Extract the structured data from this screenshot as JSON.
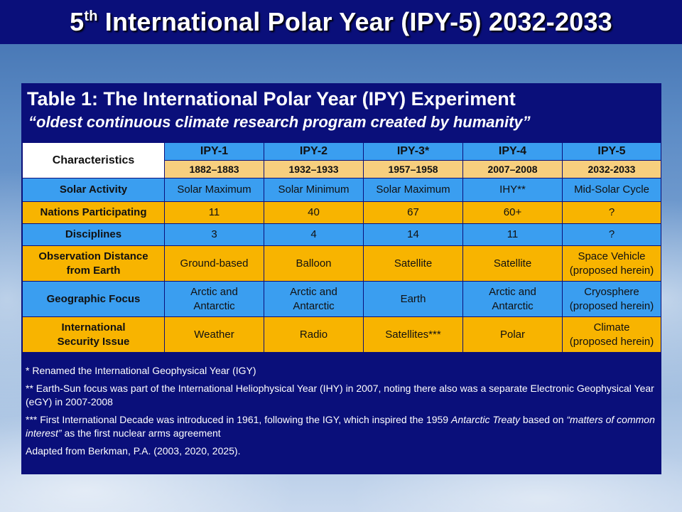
{
  "slide": {
    "title_prefix": "5",
    "title_sup": "th",
    "title_rest": " International Polar Year (IPY-5) 2032-2033"
  },
  "panel": {
    "title": "Table 1: The International Polar Year (IPY) Experiment",
    "subtitle": "“oldest continuous climate research program created by humanity”"
  },
  "table": {
    "corner_label": "Characteristics",
    "columns": [
      {
        "name": "IPY-1",
        "years": "1882–1883"
      },
      {
        "name": "IPY-2",
        "years": "1932–1933"
      },
      {
        "name": "IPY-3*",
        "years": "1957–1958"
      },
      {
        "name": "IPY-4",
        "years": "2007–2008"
      },
      {
        "name": "IPY-5",
        "years": "2032-2033"
      }
    ],
    "rows": [
      {
        "label": "Solar Activity",
        "cells": [
          "Solar Maximum",
          "Solar Minimum",
          "Solar Maximum",
          "IHY**",
          "Mid-Solar Cycle"
        ]
      },
      {
        "label": "Nations Participating",
        "cells": [
          "11",
          "40",
          "67",
          "60+",
          "?"
        ]
      },
      {
        "label": "Disciplines",
        "cells": [
          "3",
          "4",
          "14",
          "11",
          "?"
        ]
      },
      {
        "label_line1": "Observation Distance",
        "label_line2": "from Earth",
        "cells": [
          "Ground-based",
          "Balloon",
          "Satellite",
          "Satellite"
        ],
        "last_line1": "Space Vehicle",
        "last_line2": "(proposed herein)"
      },
      {
        "label": "Geographic Focus",
        "c1_line1": "Arctic and",
        "c1_line2": "Antarctic",
        "c2_line1": "Arctic and",
        "c2_line2": "Antarctic",
        "c3": "Earth",
        "c4_line1": "Arctic and",
        "c4_line2": "Antarctic",
        "last_line1": "Cryosphere",
        "last_line2": "(proposed herein)"
      },
      {
        "label_line1": "International",
        "label_line2": "Security Issue",
        "cells": [
          "Weather",
          "Radio",
          "Satellites***",
          "Polar"
        ],
        "last_line1": "Climate",
        "last_line2": "(proposed herein)"
      }
    ]
  },
  "notes": {
    "n1": "* Renamed the International Geophysical Year (IGY)",
    "n2": "** Earth-Sun focus was part of the International Heliophysical Year (IHY) in 2007, noting there also was a separate Electronic Geophysical Year (eGY) in 2007-2008",
    "n3_a": "*** First International Decade was introduced in 1961, following the IGY, which inspired the 1959 ",
    "n3_italic1": "Antarctic Treaty",
    "n3_b": " based on ",
    "n3_italic2": "“matters of common interest”",
    "n3_c": " as the first nuclear arms agreement",
    "n4": "Adapted from Berkman, P.A. (2003, 2020, 2025)."
  }
}
